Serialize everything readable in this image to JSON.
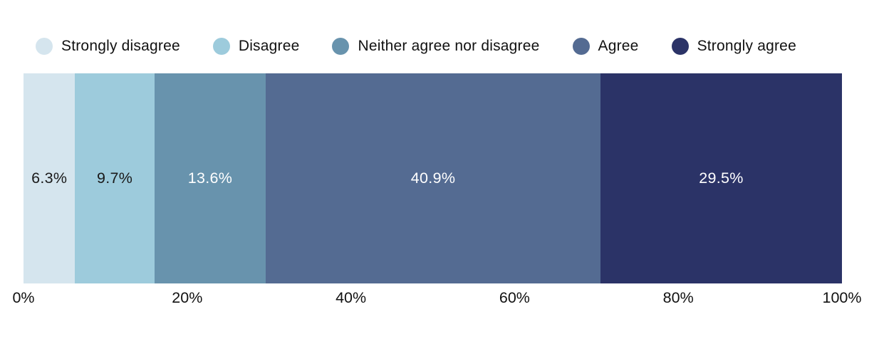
{
  "chart_data": {
    "type": "bar",
    "variant": "horizontal-stacked-100",
    "title": "",
    "xlabel": "",
    "ylabel": "",
    "categories": [
      "Strongly disagree",
      "Disagree",
      "Neither agree nor disagree",
      "Agree",
      "Strongly agree"
    ],
    "values": [
      6.3,
      9.7,
      13.6,
      40.9,
      29.5
    ],
    "value_labels": [
      "6.3%",
      "9.7%",
      "13.6%",
      "40.9%",
      "29.5%"
    ],
    "segment_colors": [
      "#d5e5ee",
      "#9dcbdc",
      "#6893ad",
      "#546b92",
      "#2b3367"
    ],
    "value_label_colors": [
      "#1a1a1a",
      "#1a1a1a",
      "#ffffff",
      "#ffffff",
      "#ffffff"
    ],
    "xlim": [
      0,
      100
    ],
    "x_tick_values": [
      0,
      20,
      40,
      60,
      80,
      100
    ],
    "x_tick_labels": [
      "0%",
      "20%",
      "40%",
      "60%",
      "80%",
      "100%"
    ],
    "legend_position": "top",
    "grid": "off",
    "legend": {
      "items": [
        {
          "label": "Strongly disagree",
          "color": "#d5e5ee"
        },
        {
          "label": "Disagree",
          "color": "#9dcbdc"
        },
        {
          "label": "Neither agree nor disagree",
          "color": "#6893ad"
        },
        {
          "label": "Agree",
          "color": "#546b92"
        },
        {
          "label": "Strongly agree",
          "color": "#2b3367"
        }
      ]
    }
  }
}
